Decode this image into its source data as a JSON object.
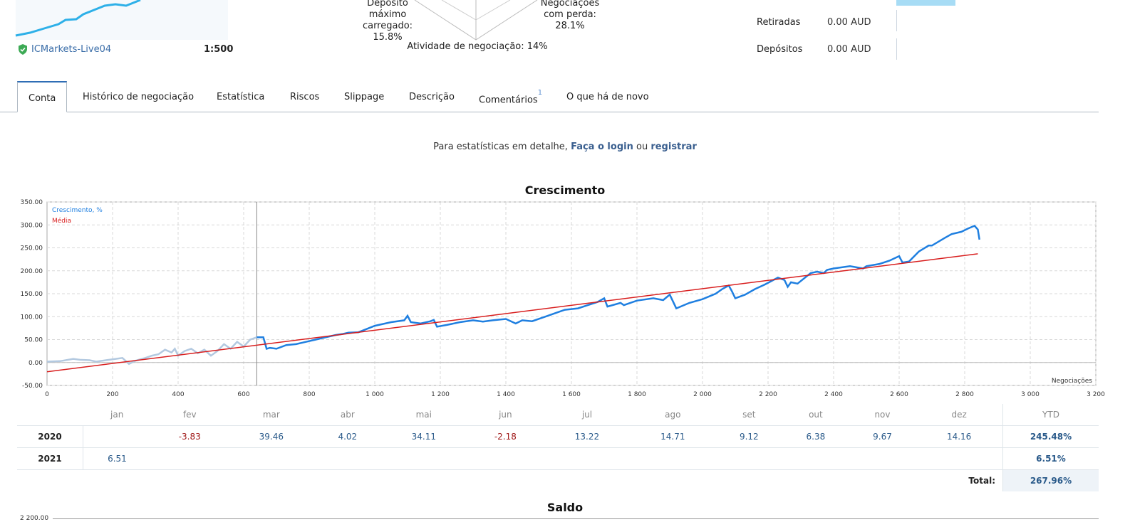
{
  "account": {
    "broker": "ICMarkets-Live04",
    "leverage": "1:500"
  },
  "radar": {
    "max_deposit_load_label": [
      "Depósito",
      "máximo",
      "carregado:"
    ],
    "max_deposit_load_value": "15.8%",
    "loss_trades_label": [
      "Negociações",
      "com perda:"
    ],
    "loss_trades_value": "28.1%",
    "activity": "Atividade de negociação: 14%"
  },
  "summary": {
    "withdrawals_label": "Retiradas",
    "withdrawals_value": "0.00 AUD",
    "deposits_label": "Depósitos",
    "deposits_value": "0.00 AUD"
  },
  "tabs": [
    {
      "label": "Conta",
      "active": true
    },
    {
      "label": "Histórico de negociação"
    },
    {
      "label": "Estatística"
    },
    {
      "label": "Riscos"
    },
    {
      "label": "Slippage"
    },
    {
      "label": "Descrição"
    },
    {
      "label": "Comentários",
      "badge": "1"
    },
    {
      "label": "O que há de novo"
    }
  ],
  "login_prompt": {
    "prefix": "Para estatísticas em detalhe,",
    "login": "Faça o login",
    "or": "ou",
    "register": "registrar"
  },
  "chart_data": {
    "type": "line",
    "title": "Crescimento",
    "xlabel": "Negociações",
    "ylabel": "",
    "xlim": [
      0,
      3200
    ],
    "ylim": [
      -50,
      350
    ],
    "x_ticks": [
      "0",
      "200",
      "400",
      "600",
      "800",
      "1 000",
      "1 200",
      "1 400",
      "1 600",
      "1 800",
      "2 000",
      "2 200",
      "2 400",
      "2 600",
      "2 800",
      "3 000",
      "3 200"
    ],
    "y_ticks": [
      "350.00",
      "300.00",
      "250.00",
      "200.00",
      "150.00",
      "100.00",
      "50.00",
      "0.00",
      "-50.00"
    ],
    "grid": true,
    "legend": "top-left",
    "series": [
      {
        "name": "Crescimento, %",
        "color": "#1f7fe0",
        "faded_before_x": 640,
        "x": [
          0,
          40,
          80,
          100,
          130,
          150,
          180,
          200,
          230,
          250,
          270,
          300,
          320,
          340,
          360,
          380,
          390,
          400,
          420,
          440,
          460,
          480,
          500,
          520,
          540,
          560,
          580,
          600,
          620,
          640,
          660,
          670,
          680,
          700,
          730,
          760,
          790,
          820,
          850,
          880,
          900,
          920,
          950,
          1000,
          1050,
          1090,
          1100,
          1110,
          1140,
          1170,
          1180,
          1190,
          1220,
          1260,
          1300,
          1330,
          1360,
          1400,
          1430,
          1450,
          1480,
          1520,
          1560,
          1580,
          1620,
          1650,
          1680,
          1700,
          1710,
          1750,
          1760,
          1800,
          1850,
          1880,
          1900,
          1920,
          1960,
          2000,
          2040,
          2060,
          2080,
          2090,
          2100,
          2130,
          2160,
          2190,
          2230,
          2250,
          2260,
          2270,
          2290,
          2330,
          2350,
          2370,
          2380,
          2400,
          2450,
          2490,
          2500,
          2540,
          2570,
          2600,
          2610,
          2630,
          2660,
          2690,
          2700,
          2740,
          2760,
          2790,
          2810,
          2830,
          2840,
          2845
        ],
        "y": [
          2,
          3,
          8,
          6,
          5,
          2,
          5,
          7,
          10,
          -3,
          4,
          10,
          15,
          18,
          28,
          22,
          30,
          15,
          25,
          30,
          20,
          28,
          15,
          25,
          40,
          30,
          45,
          35,
          50,
          55,
          55,
          30,
          32,
          30,
          38,
          40,
          45,
          50,
          55,
          60,
          62,
          65,
          66,
          80,
          88,
          92,
          102,
          88,
          85,
          90,
          93,
          78,
          82,
          88,
          92,
          89,
          92,
          95,
          85,
          92,
          90,
          100,
          110,
          115,
          118,
          125,
          132,
          140,
          122,
          130,
          125,
          135,
          140,
          136,
          148,
          118,
          130,
          138,
          150,
          160,
          168,
          155,
          140,
          148,
          160,
          170,
          185,
          180,
          165,
          175,
          172,
          195,
          198,
          195,
          202,
          205,
          210,
          205,
          210,
          215,
          222,
          232,
          218,
          220,
          242,
          255,
          255,
          272,
          280,
          285,
          292,
          298,
          290,
          268
        ]
      },
      {
        "name": "Média",
        "color": "#d81e1e",
        "x": [
          0,
          2840
        ],
        "y": [
          -20,
          237
        ]
      }
    ]
  },
  "monthly_table": {
    "months": [
      "jan",
      "fev",
      "mar",
      "abr",
      "mai",
      "jun",
      "jul",
      "ago",
      "set",
      "out",
      "nov",
      "dez"
    ],
    "ytd_label": "YTD",
    "rows": [
      {
        "year": "2020",
        "values": [
          "",
          "-3.83",
          "39.46",
          "4.02",
          "34.11",
          "-2.18",
          "13.22",
          "14.71",
          "9.12",
          "6.38",
          "9.67",
          "14.16"
        ],
        "ytd": "245.48%"
      },
      {
        "year": "2021",
        "values": [
          "6.51",
          "",
          "",
          "",
          "",
          "",
          "",
          "",
          "",
          "",
          "",
          ""
        ],
        "ytd": "6.51%"
      }
    ],
    "total_label": "Total:",
    "total_value": "267.96%"
  },
  "balance_chart": {
    "title": "Saldo",
    "first_tick": "2 200.00"
  }
}
